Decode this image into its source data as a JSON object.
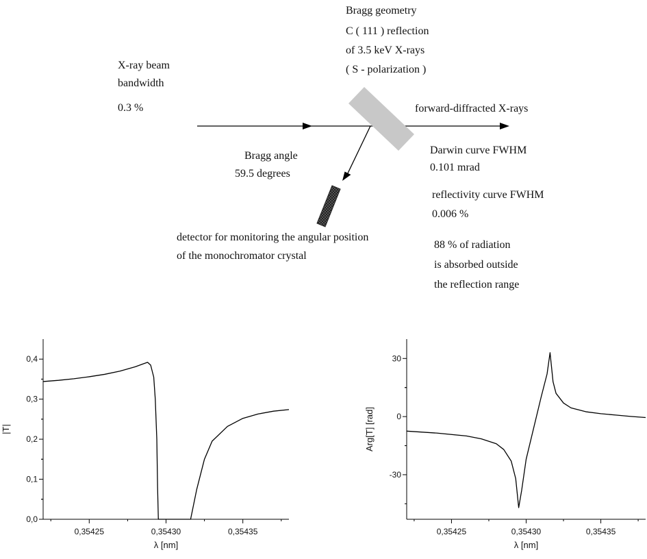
{
  "schematic": {
    "geometry_lines": [
      "Bragg geometry",
      "C ( 111 ) reflection",
      "of 3.5 keV X-rays",
      "( S - polarization )"
    ],
    "beam_lines": [
      "X-ray beam",
      "bandwidth",
      "0.3 %"
    ],
    "forward_label": "forward-diffracted X-rays",
    "darwin_lines": [
      "Darwin curve FWHM",
      "0.101 mrad"
    ],
    "reflectivity_lines": [
      "reflectivity curve FWHM",
      "0.006 %"
    ],
    "bragg_lines": [
      "Bragg angle",
      "59.5 degrees"
    ],
    "absorbed_lines": [
      "88 % of radiation",
      "is absorbed outside",
      "the reflection range"
    ],
    "detector_lines": [
      "detector for monitoring the angular position",
      "of the monochromator crystal"
    ],
    "colors": {
      "crystal": "#c8c8c8",
      "detector": "#333333",
      "lines": "#000000"
    }
  },
  "chart_data": [
    {
      "type": "line",
      "xlabel": "λ [nm]",
      "ylabel": "|T|",
      "xlim": [
        0.35422,
        0.35438
      ],
      "ylim": [
        0,
        0.45
      ],
      "xticks": [
        0.35425,
        0.3543,
        0.35435
      ],
      "xtick_labels": [
        "0,35425",
        "0,35430",
        "0,35435"
      ],
      "yticks": [
        0,
        0.1,
        0.2,
        0.3,
        0.4
      ],
      "ytick_labels": [
        "0,0",
        "0,1",
        "0,2",
        "0,3",
        "0,4"
      ],
      "series": [
        {
          "x": [
            0.35422,
            0.35423,
            0.35424,
            0.35425,
            0.35426,
            0.35427,
            0.35428,
            0.354285,
            0.354288,
            0.35429,
            0.354292,
            0.354293,
            0.354294,
            0.3542945,
            0.354295,
            0.3543,
            0.35431,
            0.354316,
            0.35432,
            0.354325,
            0.35433,
            0.35434,
            0.35435,
            0.35436,
            0.35437,
            0.35438
          ],
          "y": [
            0.344,
            0.347,
            0.351,
            0.356,
            0.362,
            0.37,
            0.381,
            0.388,
            0.392,
            0.385,
            0.355,
            0.3,
            0.2,
            0.08,
            0.0,
            0.0,
            0.0,
            0.0,
            0.075,
            0.15,
            0.195,
            0.232,
            0.252,
            0.263,
            0.27,
            0.274
          ]
        }
      ]
    },
    {
      "type": "line",
      "xlabel": "λ [nm]",
      "ylabel": "Arg[T] [rad]",
      "xlim": [
        0.35422,
        0.35438
      ],
      "ylim": [
        -53,
        40
      ],
      "xticks": [
        0.35425,
        0.3543,
        0.35435
      ],
      "xtick_labels": [
        "0,35425",
        "0,35430",
        "0,35435"
      ],
      "yticks": [
        -30,
        0,
        30
      ],
      "ytick_labels": [
        "-30",
        "0",
        "30"
      ],
      "series": [
        {
          "x": [
            0.35422,
            0.35424,
            0.35426,
            0.35427,
            0.35428,
            0.354285,
            0.35429,
            0.354293,
            0.354295,
            0.354297,
            0.3543,
            0.35431,
            0.354314,
            0.354316,
            0.354318,
            0.35432,
            0.354325,
            0.35433,
            0.35434,
            0.35435,
            0.35436,
            0.35437,
            0.35438
          ],
          "y": [
            -7.5,
            -8.5,
            -10,
            -11.5,
            -14,
            -17,
            -23,
            -32,
            -47,
            -38,
            -22,
            10,
            22,
            33,
            18,
            12,
            7,
            4.5,
            2.5,
            1.5,
            0.8,
            0.1,
            -0.5
          ]
        }
      ]
    }
  ]
}
